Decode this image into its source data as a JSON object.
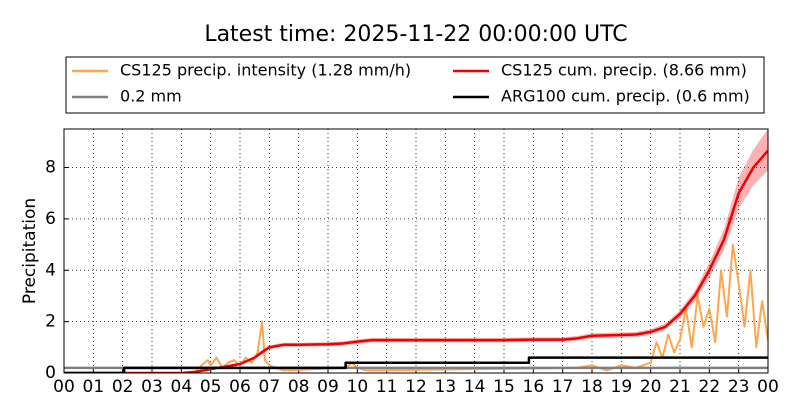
{
  "chart_data": {
    "type": "line",
    "title": "Latest time: 2025-11-22 00:00:00 UTC",
    "y_label": "Precipitation",
    "xlim": [
      0,
      24
    ],
    "ylim": [
      0,
      9.5
    ],
    "xticks": [
      {
        "value": 0,
        "label": "00"
      },
      {
        "value": 1,
        "label": "01"
      },
      {
        "value": 2,
        "label": "02"
      },
      {
        "value": 3,
        "label": "03"
      },
      {
        "value": 4,
        "label": "04"
      },
      {
        "value": 5,
        "label": "05"
      },
      {
        "value": 6,
        "label": "06"
      },
      {
        "value": 7,
        "label": "07"
      },
      {
        "value": 8,
        "label": "08"
      },
      {
        "value": 9,
        "label": "09"
      },
      {
        "value": 10,
        "label": "10"
      },
      {
        "value": 11,
        "label": "11"
      },
      {
        "value": 12,
        "label": "12"
      },
      {
        "value": 13,
        "label": "13"
      },
      {
        "value": 14,
        "label": "14"
      },
      {
        "value": 15,
        "label": "15"
      },
      {
        "value": 16,
        "label": "16"
      },
      {
        "value": 17,
        "label": "17"
      },
      {
        "value": 18,
        "label": "18"
      },
      {
        "value": 19,
        "label": "19"
      },
      {
        "value": 20,
        "label": "20"
      },
      {
        "value": 21,
        "label": "21"
      },
      {
        "value": 22,
        "label": "22"
      },
      {
        "value": 23,
        "label": "23"
      },
      {
        "value": 24,
        "label": "00"
      }
    ],
    "yticks": [
      0,
      2,
      4,
      6,
      8
    ],
    "grid": true,
    "legend": "top",
    "series": [
      {
        "name": "CS125 precip. intensity (1.28 mm/h)",
        "color": "#ffa64d",
        "x": [
          4.5,
          4.7,
          4.9,
          5.0,
          5.2,
          5.4,
          5.6,
          5.8,
          6.0,
          6.2,
          6.4,
          6.6,
          6.75,
          6.85,
          7.0,
          7.2,
          7.5,
          9.6,
          9.8,
          10.0,
          10.3,
          17.5,
          18.0,
          18.5,
          19.0,
          19.5,
          20.0,
          20.2,
          20.4,
          20.6,
          20.8,
          21.0,
          21.2,
          21.4,
          21.6,
          21.8,
          22.0,
          22.2,
          22.4,
          22.6,
          22.8,
          23.0,
          23.2,
          23.4,
          23.6,
          23.8,
          24.0
        ],
        "values": [
          0.1,
          0.3,
          0.5,
          0.3,
          0.6,
          0.2,
          0.4,
          0.5,
          0.3,
          0.6,
          0.4,
          0.8,
          2.0,
          0.5,
          0.3,
          0.2,
          0.1,
          0.2,
          0.4,
          0.2,
          0.1,
          0.2,
          0.3,
          0.1,
          0.3,
          0.2,
          0.4,
          1.2,
          0.6,
          1.5,
          0.8,
          1.3,
          2.5,
          1.0,
          3.0,
          1.8,
          2.5,
          1.2,
          4.0,
          2.2,
          5.0,
          3.5,
          1.8,
          4.0,
          1.0,
          2.8,
          1.28
        ]
      },
      {
        "name": "CS125 cum. precip. (8.66 mm)",
        "color": "#ee0000",
        "x": [
          0,
          4,
          4.5,
          5,
          5.5,
          6,
          6.5,
          6.8,
          7,
          7.5,
          8,
          9,
          9.5,
          10,
          10.5,
          11,
          12,
          13,
          14,
          15,
          16,
          17,
          17.5,
          18,
          19,
          19.5,
          20,
          20.5,
          21,
          21.5,
          22,
          22.5,
          23,
          23.5,
          24
        ],
        "values": [
          0,
          0,
          0.05,
          0.15,
          0.25,
          0.35,
          0.6,
          0.85,
          1.0,
          1.1,
          1.1,
          1.12,
          1.15,
          1.22,
          1.28,
          1.28,
          1.28,
          1.28,
          1.28,
          1.28,
          1.3,
          1.3,
          1.35,
          1.45,
          1.48,
          1.5,
          1.6,
          1.8,
          2.3,
          3.0,
          4.0,
          5.2,
          7.0,
          8.0,
          8.66
        ],
        "lower": [
          0,
          0,
          0.04,
          0.13,
          0.22,
          0.31,
          0.54,
          0.77,
          0.92,
          1.02,
          1.02,
          1.04,
          1.07,
          1.13,
          1.19,
          1.19,
          1.19,
          1.19,
          1.19,
          1.19,
          1.21,
          1.21,
          1.26,
          1.35,
          1.38,
          1.4,
          1.49,
          1.68,
          2.15,
          2.8,
          3.7,
          4.8,
          6.4,
          7.3,
          7.9
        ],
        "upper": [
          0,
          0,
          0.06,
          0.17,
          0.28,
          0.39,
          0.66,
          0.93,
          1.08,
          1.18,
          1.18,
          1.2,
          1.23,
          1.31,
          1.37,
          1.37,
          1.37,
          1.37,
          1.37,
          1.37,
          1.39,
          1.39,
          1.44,
          1.55,
          1.58,
          1.6,
          1.71,
          1.92,
          2.45,
          3.2,
          4.3,
          5.6,
          7.6,
          8.7,
          9.5
        ]
      },
      {
        "name": "0.2 mm",
        "color": "#808080",
        "x": [
          0,
          24
        ],
        "values": [
          0.2,
          0.2
        ]
      },
      {
        "name": "ARG100 cum. precip. (0.6 mm)",
        "color": "#000000",
        "x": [
          0,
          2.05,
          2.05,
          9.6,
          9.6,
          15.85,
          15.85,
          24
        ],
        "values": [
          0,
          0,
          0.2,
          0.2,
          0.4,
          0.4,
          0.6,
          0.6
        ]
      }
    ]
  }
}
